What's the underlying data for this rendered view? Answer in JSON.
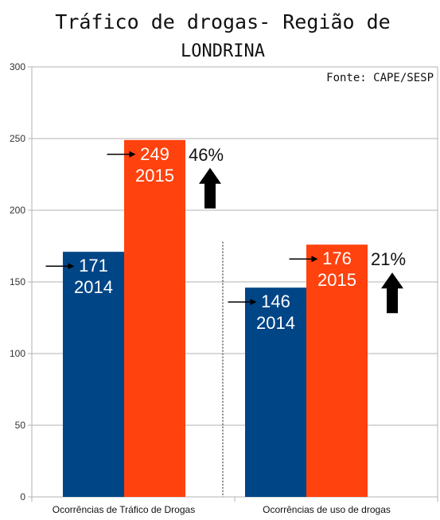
{
  "chart_data": {
    "type": "bar",
    "title_line1": "Tráfico de drogas- Região de",
    "title_line2": "LONDRINA",
    "source": "Fonte: CAPE/SESP",
    "categories": [
      "Ocorrências de Tráfico de Drogas",
      "Ocorrências de uso de drogas"
    ],
    "series": [
      {
        "name": "2014",
        "values": [
          171,
          146
        ],
        "color": "#004586"
      },
      {
        "name": "2015",
        "values": [
          249,
          176
        ],
        "color": "#ff420e"
      }
    ],
    "ylim": [
      0,
      300
    ],
    "yticks": [
      0,
      50,
      100,
      150,
      200,
      250,
      300
    ],
    "grid": true,
    "annotations": [
      {
        "category_index": 0,
        "text": "46%",
        "direction": "up"
      },
      {
        "category_index": 1,
        "text": "21%",
        "direction": "up"
      }
    ]
  }
}
